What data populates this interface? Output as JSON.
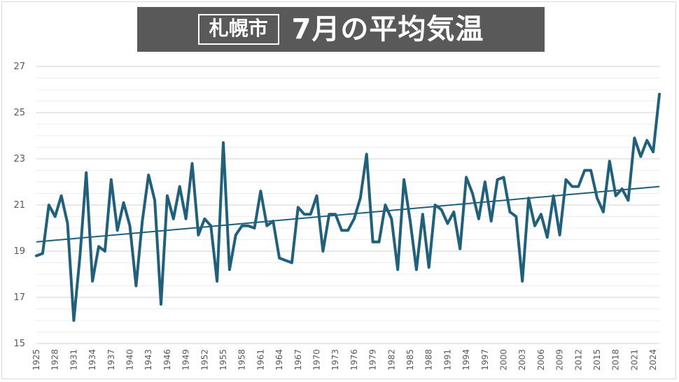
{
  "header": {
    "city": "札幌市",
    "title": "7月の平均気温"
  },
  "colors": {
    "line": "#1f607d",
    "trend": "#1f607d",
    "grid": "#d9d9d9",
    "banner": "#595959"
  },
  "chart_data": {
    "type": "line",
    "title": "7月の平均気温",
    "xlabel": "",
    "ylabel": "",
    "ylim": [
      15,
      27
    ],
    "yticks": [
      15,
      17,
      19,
      21,
      23,
      25,
      27
    ],
    "grid": true,
    "minor_grid_step": 0.5,
    "legend": "none",
    "x_start": 1925,
    "x_end": 2025,
    "xtick_labels": [
      "1925",
      "1928",
      "1931",
      "1934",
      "1937",
      "1940",
      "1943",
      "1946",
      "1949",
      "1952",
      "1955",
      "1958",
      "1961",
      "1964",
      "1967",
      "1970",
      "1973",
      "1976",
      "1979",
      "1982",
      "1985",
      "1988",
      "1991",
      "1994",
      "1997",
      "2000",
      "2003",
      "2006",
      "2009",
      "2012",
      "2015",
      "2018",
      "2021",
      "2024"
    ],
    "series": [
      {
        "type": "line",
        "values": [
          18.8,
          18.9,
          21.0,
          20.5,
          21.4,
          20.2,
          16.0,
          18.8,
          22.4,
          17.7,
          19.2,
          19.0,
          22.1,
          19.9,
          21.1,
          20.1,
          17.5,
          20.3,
          22.3,
          21.2,
          16.7,
          21.4,
          20.4,
          21.8,
          20.4,
          22.8,
          19.7,
          20.4,
          20.1,
          17.7,
          23.7,
          18.2,
          19.7,
          20.1,
          20.1,
          20.0,
          21.6,
          20.1,
          20.3,
          18.7,
          18.6,
          18.5,
          20.9,
          20.6,
          20.6,
          21.4,
          19.0,
          20.6,
          20.6,
          19.9,
          19.9,
          20.4,
          21.3,
          23.2,
          19.4,
          19.4,
          21.0,
          20.4,
          18.2,
          22.1,
          20.3,
          18.2,
          20.6,
          18.3,
          21.0,
          20.8,
          20.2,
          20.7,
          19.1,
          22.2,
          21.5,
          20.4,
          22.0,
          20.3,
          22.1,
          22.2,
          20.7,
          20.5,
          17.7,
          21.3,
          20.1,
          20.6,
          19.6,
          21.4,
          19.7,
          22.1,
          21.8,
          21.8,
          22.5,
          22.5,
          21.3,
          20.7,
          22.9,
          21.4,
          21.7,
          21.2,
          23.9,
          23.1,
          23.8,
          23.3,
          25.8
        ]
      },
      {
        "type": "trendline",
        "start": [
          1925,
          19.4
        ],
        "end": [
          2025,
          21.8
        ]
      }
    ]
  }
}
